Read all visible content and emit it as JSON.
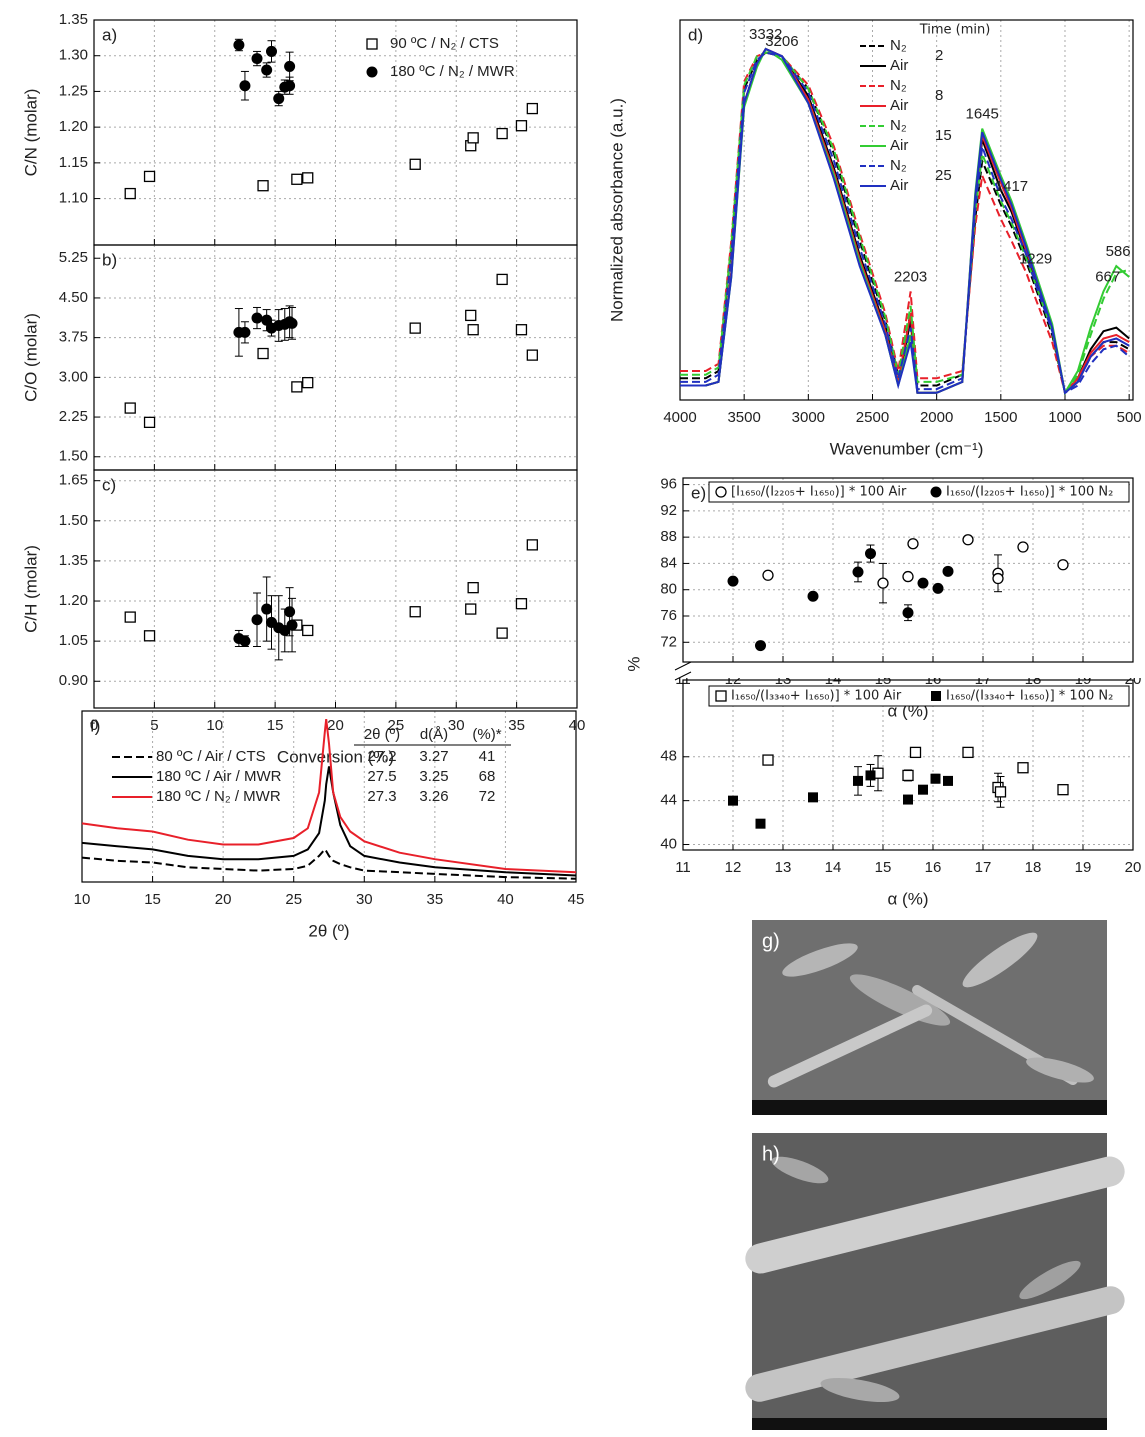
{
  "chart_data": [
    {
      "type": "scatter",
      "panel_label": "a)",
      "ylabel": "C/N (molar)",
      "xlim": [
        0,
        40
      ],
      "xticks": [
        0,
        5,
        10,
        15,
        20,
        25,
        30,
        35,
        40
      ],
      "ylim": [
        1.035,
        1.35
      ],
      "yticks": [
        {
          "value": 1.1,
          "label": "1.10"
        },
        1.15,
        {
          "value": 1.2,
          "label": "1.20"
        },
        1.25,
        {
          "value": 1.3,
          "label": "1.30"
        },
        1.35
      ],
      "grid": true,
      "series": [
        {
          "name": "90 ºC / N₂ / CTS",
          "marker": "square-open",
          "color": "#000000",
          "x": [
            3,
            4.6,
            14,
            16.8,
            17.7,
            26.6,
            31.2,
            31.4,
            33.8,
            35.4,
            36.3
          ],
          "values": [
            1.107,
            1.131,
            1.118,
            1.127,
            1.129,
            1.148,
            1.174,
            1.185,
            1.191,
            1.202,
            1.226
          ]
        },
        {
          "name": "180 ºC / N₂ / MWR",
          "marker": "circle-filled",
          "color": "#000000",
          "x": [
            12,
            12.5,
            13.5,
            14.3,
            14.7,
            15.3,
            15.8,
            16.2,
            16.2
          ],
          "values": [
            1.315,
            1.258,
            1.296,
            1.28,
            1.306,
            1.24,
            1.256,
            1.258,
            1.285
          ],
          "errors": [
            0.008,
            0.02,
            0.01,
            0.01,
            0.015,
            0.01,
            0.01,
            0.012,
            0.02
          ]
        }
      ]
    },
    {
      "type": "scatter",
      "panel_label": "b)",
      "ylabel": "C/O (molar)",
      "xlim": [
        0,
        40
      ],
      "xticks": [
        0,
        5,
        10,
        15,
        20,
        25,
        30,
        35,
        40
      ],
      "ylim": [
        1.25,
        5.5
      ],
      "yticks": [
        {
          "value": 1.5,
          "label": "1.50"
        },
        2.25,
        {
          "value": 3,
          "label": "3.00"
        },
        3.75,
        {
          "value": 4.5,
          "label": "4.50"
        },
        5.25
      ],
      "grid": true,
      "series": [
        {
          "marker": "square-open",
          "color": "#000000",
          "x": [
            3,
            4.6,
            14,
            16.8,
            17.7,
            26.6,
            31.2,
            31.4,
            33.8,
            35.4,
            36.3
          ],
          "values": [
            2.42,
            2.15,
            3.45,
            2.82,
            2.9,
            3.93,
            4.17,
            3.9,
            4.85,
            3.9,
            3.42
          ]
        },
        {
          "marker": "circle-filled",
          "color": "#000000",
          "x": [
            12,
            12.5,
            13.5,
            14.3,
            14.7,
            15.3,
            15.8,
            16.2,
            16.4
          ],
          "values": [
            3.85,
            3.85,
            4.12,
            4.08,
            3.93,
            3.98,
            4.0,
            4.05,
            4.02
          ],
          "errors": [
            0.45,
            0.2,
            0.2,
            0.2,
            0.15,
            0.3,
            0.3,
            0.3,
            0.3
          ]
        }
      ]
    },
    {
      "type": "scatter",
      "panel_label": "c)",
      "ylabel": "C/H (molar)",
      "xlabel": "Conversion (%)",
      "xlim": [
        0,
        40
      ],
      "xticks": [
        0,
        5,
        10,
        15,
        20,
        25,
        30,
        35,
        40
      ],
      "ylim": [
        0.8,
        1.69
      ],
      "yticks": [
        {
          "value": 0.9,
          "label": "0.90"
        },
        1.05,
        {
          "value": 1.2,
          "label": "1.20"
        },
        1.35,
        {
          "value": 1.5,
          "label": "1.50"
        },
        1.65
      ],
      "grid": true,
      "series": [
        {
          "marker": "square-open",
          "color": "#000000",
          "x": [
            3,
            4.6,
            16.8,
            17.7,
            26.6,
            31.2,
            31.4,
            33.8,
            35.4,
            36.3
          ],
          "values": [
            1.14,
            1.07,
            1.11,
            1.09,
            1.16,
            1.17,
            1.25,
            1.08,
            1.19,
            1.41
          ]
        },
        {
          "marker": "circle-filled",
          "color": "#000000",
          "x": [
            12,
            12.5,
            13.5,
            14.3,
            14.7,
            15.3,
            15.8,
            16.2,
            16.4
          ],
          "values": [
            1.06,
            1.05,
            1.13,
            1.17,
            1.12,
            1.1,
            1.09,
            1.16,
            1.11
          ],
          "errors": [
            0.03,
            0.02,
            0.1,
            0.12,
            0.1,
            0.12,
            0.08,
            0.09,
            0.1
          ]
        }
      ]
    },
    {
      "type": "line",
      "panel_label": "d)",
      "ylabel": "Normalized absorbance (a.u.)",
      "xlabel": "Wavenumber (cm⁻¹)",
      "xlim": [
        4000,
        470
      ],
      "xticks": [
        4000,
        3500,
        3000,
        2500,
        2000,
        1500,
        1000,
        500
      ],
      "ylim": [
        0,
        1.05
      ],
      "grid": true,
      "legend_title": "Time (min)",
      "legend_times": [
        2,
        8,
        15,
        25
      ],
      "peak_labels": [
        3332,
        3206,
        2203,
        1645,
        1417,
        1229,
        667,
        586
      ],
      "x": [
        4000,
        3800,
        3700,
        3600,
        3500,
        3400,
        3332,
        3206,
        3000,
        2800,
        2600,
        2400,
        2300,
        2203,
        2150,
        2000,
        1800,
        1700,
        1645,
        1500,
        1417,
        1300,
        1229,
        1100,
        1000,
        900,
        800,
        700,
        600,
        500
      ],
      "series": [
        {
          "name": "N₂",
          "color": "#000000",
          "dashed": true,
          "values": [
            0.06,
            0.06,
            0.08,
            0.42,
            0.86,
            0.94,
            0.96,
            0.95,
            0.86,
            0.68,
            0.44,
            0.22,
            0.07,
            0.24,
            0.04,
            0.04,
            0.07,
            0.5,
            0.66,
            0.54,
            0.48,
            0.38,
            0.31,
            0.18,
            0.02,
            0.05,
            0.12,
            0.16,
            0.16,
            0.14
          ]
        },
        {
          "name": "Air",
          "color": "#000000",
          "dashed": false,
          "values": [
            0.04,
            0.04,
            0.05,
            0.35,
            0.82,
            0.93,
            0.97,
            0.95,
            0.84,
            0.64,
            0.4,
            0.2,
            0.05,
            0.22,
            0.02,
            0.02,
            0.05,
            0.55,
            0.72,
            0.58,
            0.52,
            0.4,
            0.33,
            0.2,
            0.02,
            0.06,
            0.14,
            0.19,
            0.2,
            0.17
          ]
        },
        {
          "name": "N₂",
          "color": "#e8202a",
          "dashed": true,
          "values": [
            0.08,
            0.08,
            0.1,
            0.44,
            0.88,
            0.95,
            0.96,
            0.95,
            0.87,
            0.7,
            0.46,
            0.24,
            0.08,
            0.3,
            0.06,
            0.06,
            0.08,
            0.48,
            0.62,
            0.5,
            0.44,
            0.35,
            0.28,
            0.16,
            0.02,
            0.05,
            0.12,
            0.15,
            0.15,
            0.13
          ]
        },
        {
          "name": "Air",
          "color": "#e8202a",
          "dashed": false,
          "values": [
            0.04,
            0.04,
            0.05,
            0.35,
            0.82,
            0.93,
            0.97,
            0.95,
            0.83,
            0.63,
            0.39,
            0.19,
            0.05,
            0.24,
            0.02,
            0.02,
            0.05,
            0.56,
            0.73,
            0.6,
            0.53,
            0.41,
            0.34,
            0.2,
            0.02,
            0.06,
            0.13,
            0.17,
            0.18,
            0.16
          ]
        },
        {
          "name": "N₂",
          "color": "#33cc33",
          "dashed": true,
          "values": [
            0.07,
            0.07,
            0.09,
            0.43,
            0.87,
            0.95,
            0.96,
            0.95,
            0.86,
            0.69,
            0.45,
            0.23,
            0.07,
            0.26,
            0.05,
            0.05,
            0.07,
            0.52,
            0.68,
            0.55,
            0.49,
            0.39,
            0.32,
            0.19,
            0.02,
            0.07,
            0.18,
            0.28,
            0.35,
            0.36
          ]
        },
        {
          "name": "Air",
          "color": "#33cc33",
          "dashed": false,
          "values": [
            0.04,
            0.04,
            0.05,
            0.34,
            0.81,
            0.92,
            0.97,
            0.94,
            0.82,
            0.62,
            0.38,
            0.18,
            0.04,
            0.18,
            0.02,
            0.02,
            0.05,
            0.57,
            0.75,
            0.62,
            0.55,
            0.43,
            0.35,
            0.21,
            0.02,
            0.08,
            0.2,
            0.3,
            0.37,
            0.34
          ]
        },
        {
          "name": "N₂",
          "color": "#2030c0",
          "dashed": true,
          "values": [
            0.05,
            0.05,
            0.07,
            0.4,
            0.85,
            0.94,
            0.96,
            0.95,
            0.85,
            0.66,
            0.42,
            0.21,
            0.06,
            0.2,
            0.03,
            0.03,
            0.06,
            0.53,
            0.7,
            0.56,
            0.5,
            0.4,
            0.32,
            0.19,
            0.02,
            0.04,
            0.1,
            0.14,
            0.15,
            0.12
          ]
        },
        {
          "name": "Air",
          "color": "#2030c0",
          "dashed": false,
          "values": [
            0.04,
            0.04,
            0.05,
            0.34,
            0.82,
            0.93,
            0.97,
            0.95,
            0.82,
            0.61,
            0.37,
            0.18,
            0.04,
            0.16,
            0.02,
            0.02,
            0.05,
            0.56,
            0.74,
            0.61,
            0.54,
            0.42,
            0.34,
            0.2,
            0.02,
            0.05,
            0.12,
            0.16,
            0.17,
            0.15
          ]
        }
      ]
    },
    {
      "type": "scatter",
      "panel_label": "e)",
      "ylabel": "%",
      "xlabel": "α (%)",
      "xlim": [
        11,
        20
      ],
      "xticks": [
        11,
        12,
        13,
        14,
        15,
        16,
        17,
        18,
        19,
        20
      ],
      "grid": true,
      "ylim_upper": [
        69,
        97
      ],
      "yticks_upper": [
        72,
        76,
        80,
        84,
        88,
        92,
        96
      ],
      "ylim_lower": [
        39.5,
        55
      ],
      "yticks_lower": [
        40,
        44,
        48
      ],
      "series": [
        {
          "name": "[I₁₆₅₀/(I₂₂₀₅+ I₁₆₅₀)] * 100 Air",
          "axis": "upper",
          "marker": "circle-open",
          "color": "#000000",
          "x": [
            12.7,
            15.0,
            15.5,
            15.6,
            16.7,
            17.3,
            17.3,
            17.8,
            18.6
          ],
          "values": [
            82.2,
            81,
            82,
            87,
            87.6,
            82.5,
            81.7,
            86.5,
            83.8
          ],
          "errors": [
            null,
            3,
            null,
            null,
            null,
            2.8,
            null,
            null,
            null
          ]
        },
        {
          "name": "I₁₆₅₀/(I₂₂₀₅+ I₁₆₅₀)] * 100 N₂",
          "axis": "upper",
          "marker": "circle-filled",
          "color": "#000000",
          "x": [
            12,
            12.55,
            13.6,
            14.5,
            14.75,
            15.5,
            15.8,
            16.1,
            16.3
          ],
          "values": [
            81.3,
            71.5,
            79,
            82.7,
            85.5,
            76.5,
            81,
            80.2,
            82.8
          ],
          "errors": [
            null,
            null,
            null,
            1.5,
            1.3,
            1.2,
            null,
            null,
            null
          ]
        },
        {
          "name": "I₁₆₅₀/(I₃₃₄₀+ I₁₆₅₀)] * 100 Air",
          "axis": "lower",
          "marker": "square-open",
          "color": "#000000",
          "x": [
            12.7,
            14.9,
            15.5,
            15.65,
            16.7,
            17.3,
            17.35,
            17.8,
            18.6
          ],
          "values": [
            47.7,
            46.5,
            46.3,
            48.4,
            48.4,
            45.2,
            44.8,
            47,
            45
          ],
          "errors": [
            null,
            1.6,
            0.5,
            null,
            null,
            1.3,
            1.4,
            null,
            null
          ]
        },
        {
          "name": "I₁₆₅₀/(I₃₃₄₀+ I₁₆₅₀)] * 100 N₂",
          "axis": "lower",
          "marker": "square-filled",
          "color": "#000000",
          "x": [
            12,
            12.55,
            13.6,
            14.5,
            14.75,
            15.5,
            15.8,
            16.05,
            16.3
          ],
          "values": [
            44,
            41.9,
            44.3,
            45.8,
            46.3,
            44.1,
            45,
            46,
            45.8
          ],
          "errors": [
            null,
            null,
            null,
            1.3,
            1,
            null,
            null,
            0.4,
            null
          ]
        }
      ]
    },
    {
      "type": "line",
      "panel_label": "f)",
      "xlabel": "2θ (º)",
      "xlim": [
        10,
        45
      ],
      "xticks": [
        10,
        15,
        20,
        25,
        30,
        35,
        40,
        45
      ],
      "ylim": [
        0,
        1.05
      ],
      "grid": true,
      "x": [
        10,
        12.5,
        15,
        17.5,
        20,
        22.5,
        25,
        26,
        26.8,
        27.2,
        27.3,
        27.5,
        27.8,
        28.3,
        29,
        30,
        32.5,
        35,
        40,
        45
      ],
      "series": [
        {
          "name": "80 ºC / Air / CTS",
          "color": "#000000",
          "dashed": true,
          "values": [
            0.15,
            0.13,
            0.12,
            0.09,
            0.08,
            0.07,
            0.08,
            0.1,
            0.16,
            0.2,
            0.19,
            0.16,
            0.13,
            0.11,
            0.09,
            0.07,
            0.06,
            0.05,
            0.03,
            0.02
          ]
        },
        {
          "name": "180 ºC / Air / MWR",
          "color": "#000000",
          "dashed": false,
          "values": [
            0.24,
            0.22,
            0.2,
            0.16,
            0.14,
            0.14,
            0.16,
            0.2,
            0.3,
            0.5,
            0.6,
            0.71,
            0.55,
            0.35,
            0.22,
            0.16,
            0.12,
            0.09,
            0.06,
            0.04
          ]
        },
        {
          "name": "180 ºC / N₂ / MWR",
          "color": "#e8202a",
          "dashed": false,
          "values": [
            0.36,
            0.33,
            0.31,
            0.26,
            0.23,
            0.23,
            0.27,
            0.33,
            0.55,
            0.92,
            1.0,
            0.85,
            0.55,
            0.4,
            0.31,
            0.25,
            0.18,
            0.14,
            0.08,
            0.06
          ]
        }
      ],
      "table": {
        "columns": [
          "2θ (º)",
          "d(Å)",
          "(%)*"
        ],
        "rows": [
          [
            27.2,
            3.27,
            41
          ],
          [
            27.5,
            3.25,
            68
          ],
          [
            27.3,
            3.26,
            72
          ]
        ]
      }
    }
  ],
  "images": [
    {
      "label": "g)"
    },
    {
      "label": "h)"
    }
  ]
}
